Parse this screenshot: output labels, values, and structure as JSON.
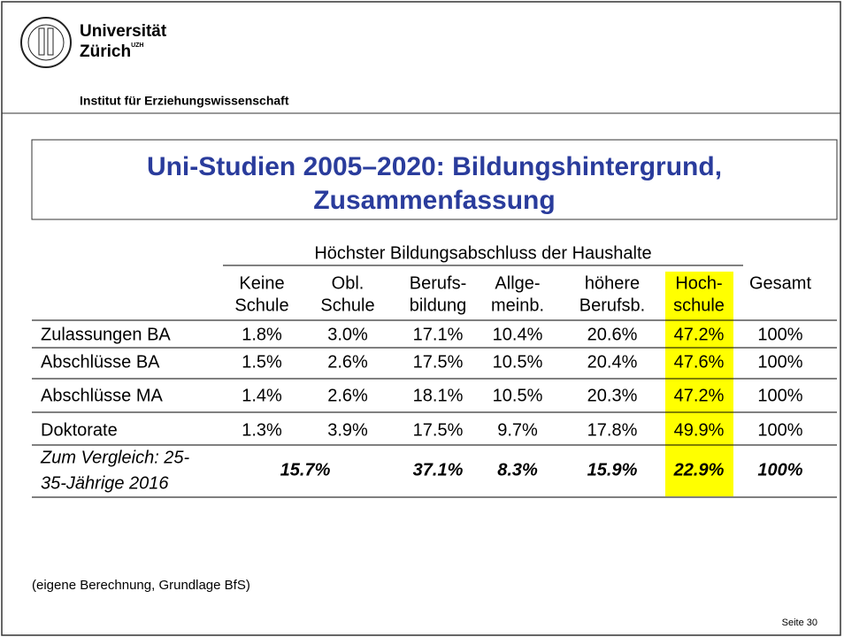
{
  "header": {
    "university": "Universität",
    "city": "Zürich",
    "city_mark": "UZH",
    "institute": "Institut für Erziehungswissenschaft"
  },
  "title": [
    "Uni-Studien 2005–2020: Bildungshintergrund,",
    "Zusammenfassung"
  ],
  "table": {
    "group_header": "Höchster Bildungsabschluss der Haushalte",
    "columns": [
      [
        "Keine",
        "Schule"
      ],
      [
        "Obl.",
        "Schule"
      ],
      [
        "Berufs-",
        "bildung"
      ],
      [
        "Allge-",
        "meinb."
      ],
      [
        "höhere",
        "Berufsb."
      ],
      [
        "Hoch-",
        "schule"
      ],
      [
        "Gesamt"
      ]
    ],
    "rows": [
      {
        "label": "Zulassungen BA",
        "values": [
          "1.8%",
          "3.0%",
          "17.1%",
          "10.4%",
          "20.6%",
          "47.2%",
          "100%"
        ]
      },
      {
        "label": "Abschlüsse BA",
        "values": [
          "1.5%",
          "2.6%",
          "17.5%",
          "10.5%",
          "20.4%",
          "47.6%",
          "100%"
        ]
      },
      {
        "label": "Abschlüsse MA",
        "values": [
          "1.4%",
          "2.6%",
          "18.1%",
          "10.5%",
          "20.3%",
          "47.2%",
          "100%"
        ]
      },
      {
        "label": "Doktorate",
        "values": [
          "1.3%",
          "3.9%",
          "17.5%",
          "9.7%",
          "17.8%",
          "49.9%",
          "100%"
        ]
      }
    ],
    "comparison": {
      "label": [
        "Zum Vergleich: 25-",
        "35-Jährige 2016"
      ],
      "values": [
        "15.7%",
        "37.1%",
        "8.3%",
        "15.9%",
        "22.9%",
        "100%"
      ]
    }
  },
  "footnote": "(eigene Berechnung, Grundlage BfS)",
  "page_number": "Seite 30"
}
